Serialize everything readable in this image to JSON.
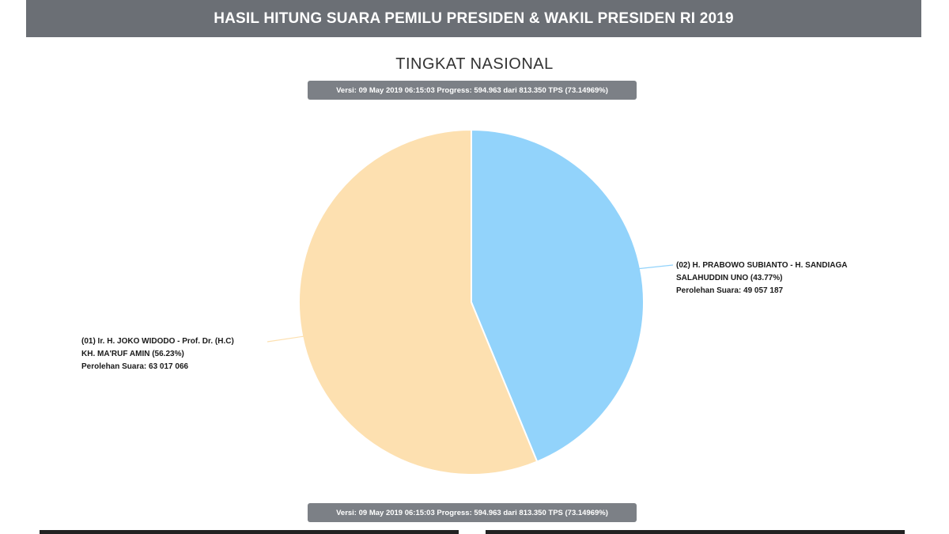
{
  "header": {
    "title": "HASIL HITUNG SUARA PEMILU PRESIDEN & WAKIL PRESIDEN RI 2019"
  },
  "subtitle": "TINGKAT NASIONAL",
  "version_badge": "Versi: 09 May 2019 06:15:03 Progress: 594.963 dari 813.350 TPS (73.14969%)",
  "chart_data": {
    "type": "pie",
    "title": "TINGKAT NASIONAL",
    "slices": [
      {
        "name": "(02) H. PRABOWO SUBIANTO - H. SANDIAGA SALAHUDDIN UNO",
        "label_lines": [
          "(02) H. PRABOWO SUBIANTO - H. SANDIAGA",
          "SALAHUDDIN UNO (43.77%)",
          "Perolehan Suara: 49 057 187"
        ],
        "percent": 43.77,
        "votes": 49057187,
        "color": "#92d3fb"
      },
      {
        "name": "(01) Ir. H. JOKO WIDODO - Prof. Dr. (H.C) KH. MA'RUF AMIN",
        "label_lines": [
          "(01) Ir. H. JOKO WIDODO - Prof. Dr. (H.C)",
          "KH. MA'RUF AMIN (56.23%)",
          "Perolehan Suara: 63 017 066"
        ],
        "percent": 56.23,
        "votes": 63017066,
        "color": "#fde0b0"
      }
    ],
    "start_angle": "12 o'clock, clockwise",
    "legend": "none (callout labels)"
  }
}
